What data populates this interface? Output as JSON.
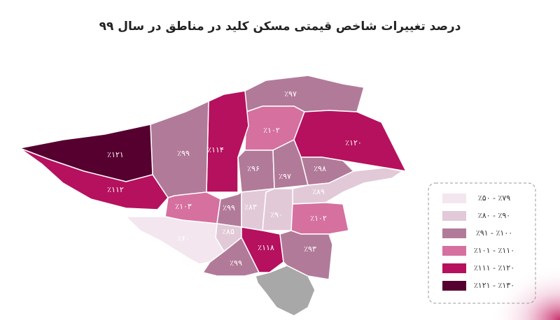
{
  "chart_data": {
    "type": "choropleth",
    "title": "درصد تغییرات شاخص قیمتی مسکن کلید در مناطق در سال ۹۹",
    "values": [
      97,
      102,
      120,
      114,
      99,
      121,
      112,
      96,
      97,
      98,
      89,
      103,
      99,
      83,
      90,
      102,
      85,
      60,
      118,
      93,
      99
    ],
    "value_labels": [
      "٪۹۷",
      "٪۱۰۲",
      "٪۱۲۰",
      "٪۱۱۴",
      "٪۹۹",
      "٪۱۲۱",
      "٪۱۱۲",
      "٪۹۶",
      "٪۹۷",
      "٪۹۸",
      "٪۸۹",
      "٪۱۰۳",
      "٪۹۹",
      "٪۸۳",
      "٪۹۰",
      "٪۱۰۲",
      "٪۸۵",
      "٪۶۰",
      "٪۱۱۸",
      "٪۹۳",
      "٪۹۹"
    ],
    "legend": [
      {
        "label": "٪۵۰ - ٪۷۹",
        "range": [
          50,
          79
        ],
        "color": "#f3e6ee"
      },
      {
        "label": "٪۸۰ - ٪۹۰",
        "range": [
          80,
          90
        ],
        "color": "#e2c9d7"
      },
      {
        "label": "٪۹۱ - ٪۱۰۰",
        "range": [
          91,
          100
        ],
        "color": "#b27a99"
      },
      {
        "label": "٪۱۰۱ - ٪۱۱۰",
        "range": [
          101,
          110
        ],
        "color": "#d5709f"
      },
      {
        "label": "٪۱۱۱ - ٪۱۲۰",
        "range": [
          111,
          120
        ],
        "color": "#b5115e"
      },
      {
        "label": "٪۱۲۱ - ٪۱۳۰",
        "range": [
          121,
          130
        ],
        "color": "#560030"
      }
    ]
  }
}
